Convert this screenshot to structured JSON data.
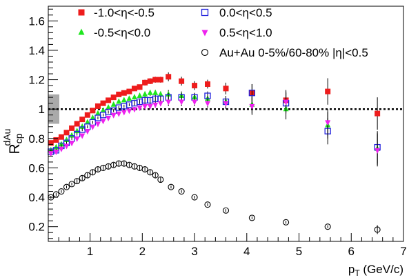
{
  "chart_data": {
    "type": "scatter",
    "xlabel": "p",
    "xlabel_sub": "T",
    "xlabel_unit": " (GeV/c)",
    "ylabel": "R",
    "ylabel_sub": "cp",
    "ylabel_sup": "dAu",
    "xlim": [
      0.2,
      7.0
    ],
    "ylim": [
      0.1,
      1.7
    ],
    "x_ticks": [
      1,
      2,
      3,
      4,
      5,
      6,
      7
    ],
    "y_ticks": [
      0.2,
      0.4,
      0.6,
      0.8,
      1.0,
      1.2,
      1.4,
      1.6
    ],
    "x_tick_labels": [
      "1",
      "2",
      "3",
      "4",
      "5",
      "6",
      "7"
    ],
    "y_tick_labels": [
      "0.2",
      "0.4",
      "0.6",
      "0.8",
      "1",
      "1.2",
      "1.4",
      "1.6"
    ],
    "grid": false,
    "legend_position": "top",
    "reference_line": {
      "y": 1.0,
      "style": "dotted"
    },
    "systematic_band": {
      "y_low": 0.9,
      "y_high": 1.1,
      "color": "#aaaaaa"
    },
    "series": [
      {
        "name": "-1.0<η<-0.5",
        "marker": "square-filled",
        "color": "#ee1c1c",
        "points": [
          [
            0.25,
            0.77,
            0.01
          ],
          [
            0.35,
            0.79,
            0.01
          ],
          [
            0.45,
            0.81,
            0.01
          ],
          [
            0.55,
            0.84,
            0.01
          ],
          [
            0.65,
            0.87,
            0.01
          ],
          [
            0.75,
            0.9,
            0.01
          ],
          [
            0.85,
            0.93,
            0.01
          ],
          [
            0.95,
            0.96,
            0.01
          ],
          [
            1.05,
            0.99,
            0.01
          ],
          [
            1.15,
            1.02,
            0.01
          ],
          [
            1.25,
            1.04,
            0.01
          ],
          [
            1.35,
            1.06,
            0.01
          ],
          [
            1.45,
            1.08,
            0.01
          ],
          [
            1.55,
            1.1,
            0.01
          ],
          [
            1.65,
            1.11,
            0.01
          ],
          [
            1.75,
            1.12,
            0.01
          ],
          [
            1.85,
            1.14,
            0.015
          ],
          [
            1.95,
            1.15,
            0.015
          ],
          [
            2.05,
            1.18,
            0.02
          ],
          [
            2.15,
            1.19,
            0.02
          ],
          [
            2.25,
            1.2,
            0.02
          ],
          [
            2.35,
            1.2,
            0.02
          ],
          [
            2.5,
            1.22,
            0.03
          ],
          [
            2.75,
            1.19,
            0.03
          ],
          [
            3.0,
            1.16,
            0.03
          ],
          [
            3.25,
            1.17,
            0.03
          ],
          [
            3.6,
            1.14,
            0.04
          ],
          [
            4.1,
            1.11,
            0.06
          ],
          [
            4.75,
            1.06,
            0.07
          ],
          [
            5.55,
            1.12,
            0.09
          ],
          [
            6.5,
            0.97,
            0.11
          ]
        ]
      },
      {
        "name": "-0.5<η<0.0",
        "marker": "triangle-up-filled",
        "color": "#1ee61e",
        "points": [
          [
            0.25,
            0.72,
            0.01
          ],
          [
            0.35,
            0.74,
            0.01
          ],
          [
            0.45,
            0.76,
            0.01
          ],
          [
            0.55,
            0.79,
            0.01
          ],
          [
            0.65,
            0.82,
            0.01
          ],
          [
            0.75,
            0.85,
            0.01
          ],
          [
            0.85,
            0.88,
            0.01
          ],
          [
            0.95,
            0.91,
            0.01
          ],
          [
            1.05,
            0.94,
            0.01
          ],
          [
            1.15,
            0.97,
            0.01
          ],
          [
            1.25,
            0.99,
            0.01
          ],
          [
            1.35,
            1.01,
            0.01
          ],
          [
            1.45,
            1.03,
            0.01
          ],
          [
            1.55,
            1.05,
            0.01
          ],
          [
            1.65,
            1.06,
            0.01
          ],
          [
            1.75,
            1.07,
            0.01
          ],
          [
            1.85,
            1.08,
            0.015
          ],
          [
            1.95,
            1.09,
            0.015
          ],
          [
            2.05,
            1.1,
            0.02
          ],
          [
            2.15,
            1.11,
            0.02
          ],
          [
            2.25,
            1.11,
            0.02
          ],
          [
            2.35,
            1.1,
            0.02
          ],
          [
            2.5,
            1.1,
            0.03
          ],
          [
            2.75,
            1.09,
            0.03
          ],
          [
            3.0,
            1.08,
            0.03
          ],
          [
            3.25,
            1.07,
            0.03
          ],
          [
            3.6,
            1.05,
            0.04
          ],
          [
            4.1,
            1.03,
            0.06
          ],
          [
            4.75,
            1.0,
            0.07
          ],
          [
            5.55,
            0.89,
            0.09
          ],
          [
            6.5,
            0.73,
            0.11
          ]
        ]
      },
      {
        "name": "0.0<η<0.5",
        "marker": "square-open",
        "color": "#2222dd",
        "points": [
          [
            0.25,
            0.71,
            0.01
          ],
          [
            0.35,
            0.72,
            0.01
          ],
          [
            0.45,
            0.75,
            0.01
          ],
          [
            0.55,
            0.77,
            0.01
          ],
          [
            0.65,
            0.8,
            0.01
          ],
          [
            0.75,
            0.83,
            0.01
          ],
          [
            0.85,
            0.86,
            0.01
          ],
          [
            0.95,
            0.88,
            0.01
          ],
          [
            1.05,
            0.91,
            0.01
          ],
          [
            1.15,
            0.94,
            0.01
          ],
          [
            1.25,
            0.96,
            0.01
          ],
          [
            1.35,
            0.98,
            0.01
          ],
          [
            1.45,
            0.99,
            0.01
          ],
          [
            1.55,
            1.01,
            0.01
          ],
          [
            1.65,
            1.02,
            0.01
          ],
          [
            1.75,
            1.03,
            0.01
          ],
          [
            1.85,
            1.04,
            0.015
          ],
          [
            1.95,
            1.05,
            0.015
          ],
          [
            2.05,
            1.06,
            0.02
          ],
          [
            2.15,
            1.06,
            0.02
          ],
          [
            2.25,
            1.07,
            0.02
          ],
          [
            2.35,
            1.07,
            0.02
          ],
          [
            2.5,
            1.08,
            0.03
          ],
          [
            2.75,
            1.08,
            0.03
          ],
          [
            3.0,
            1.08,
            0.03
          ],
          [
            3.25,
            1.09,
            0.03
          ],
          [
            3.6,
            1.05,
            0.04
          ],
          [
            4.1,
            1.11,
            0.06
          ],
          [
            4.75,
            1.04,
            0.07
          ],
          [
            5.55,
            0.85,
            0.09
          ],
          [
            6.5,
            0.74,
            0.11
          ]
        ]
      },
      {
        "name": "0.5<η<1.0",
        "marker": "triangle-down-filled",
        "color": "#ee22ee",
        "points": [
          [
            0.25,
            0.7,
            0.01
          ],
          [
            0.35,
            0.71,
            0.01
          ],
          [
            0.45,
            0.73,
            0.01
          ],
          [
            0.55,
            0.75,
            0.01
          ],
          [
            0.65,
            0.77,
            0.01
          ],
          [
            0.75,
            0.8,
            0.01
          ],
          [
            0.85,
            0.82,
            0.01
          ],
          [
            0.95,
            0.85,
            0.01
          ],
          [
            1.05,
            0.88,
            0.01
          ],
          [
            1.15,
            0.9,
            0.01
          ],
          [
            1.25,
            0.92,
            0.01
          ],
          [
            1.35,
            0.94,
            0.01
          ],
          [
            1.45,
            0.96,
            0.01
          ],
          [
            1.55,
            0.97,
            0.01
          ],
          [
            1.65,
            0.98,
            0.01
          ],
          [
            1.75,
            0.99,
            0.01
          ],
          [
            1.85,
            1.0,
            0.015
          ],
          [
            1.95,
            1.01,
            0.015
          ],
          [
            2.05,
            1.02,
            0.02
          ],
          [
            2.15,
            1.02,
            0.02
          ],
          [
            2.25,
            1.03,
            0.02
          ],
          [
            2.35,
            1.04,
            0.02
          ],
          [
            2.5,
            1.05,
            0.03
          ],
          [
            2.75,
            1.05,
            0.03
          ],
          [
            3.0,
            1.05,
            0.03
          ],
          [
            3.25,
            1.04,
            0.03
          ],
          [
            3.6,
            1.04,
            0.04
          ],
          [
            4.1,
            1.02,
            0.06
          ],
          [
            4.75,
            1.05,
            0.07
          ],
          [
            5.55,
            0.91,
            0.09
          ],
          [
            6.5,
            0.72,
            0.11
          ]
        ]
      },
      {
        "name": "Au+Au 0-5%/60-80% |η|<0.5",
        "marker": "circle-open",
        "color": "#000000",
        "points": [
          [
            0.25,
            0.4,
            0.01
          ],
          [
            0.35,
            0.42,
            0.01
          ],
          [
            0.45,
            0.44,
            0.01
          ],
          [
            0.55,
            0.47,
            0.01
          ],
          [
            0.65,
            0.49,
            0.01
          ],
          [
            0.75,
            0.51,
            0.015
          ],
          [
            0.85,
            0.53,
            0.015
          ],
          [
            0.95,
            0.55,
            0.015
          ],
          [
            1.05,
            0.57,
            0.015
          ],
          [
            1.15,
            0.59,
            0.015
          ],
          [
            1.25,
            0.6,
            0.015
          ],
          [
            1.35,
            0.61,
            0.015
          ],
          [
            1.45,
            0.62,
            0.015
          ],
          [
            1.55,
            0.63,
            0.015
          ],
          [
            1.65,
            0.63,
            0.015
          ],
          [
            1.75,
            0.62,
            0.015
          ],
          [
            1.85,
            0.61,
            0.015
          ],
          [
            1.95,
            0.6,
            0.015
          ],
          [
            2.05,
            0.59,
            0.015
          ],
          [
            2.15,
            0.57,
            0.015
          ],
          [
            2.25,
            0.55,
            0.015
          ],
          [
            2.35,
            0.52,
            0.02
          ],
          [
            2.55,
            0.47,
            0.01
          ],
          [
            2.75,
            0.44,
            0.01
          ],
          [
            3.0,
            0.4,
            0.01
          ],
          [
            3.25,
            0.35,
            0.01
          ],
          [
            3.6,
            0.31,
            0.01
          ],
          [
            4.1,
            0.26,
            0.01
          ],
          [
            4.75,
            0.23,
            0.01
          ],
          [
            5.55,
            0.2,
            0.01
          ],
          [
            6.5,
            0.18,
            0.03
          ]
        ]
      }
    ]
  }
}
